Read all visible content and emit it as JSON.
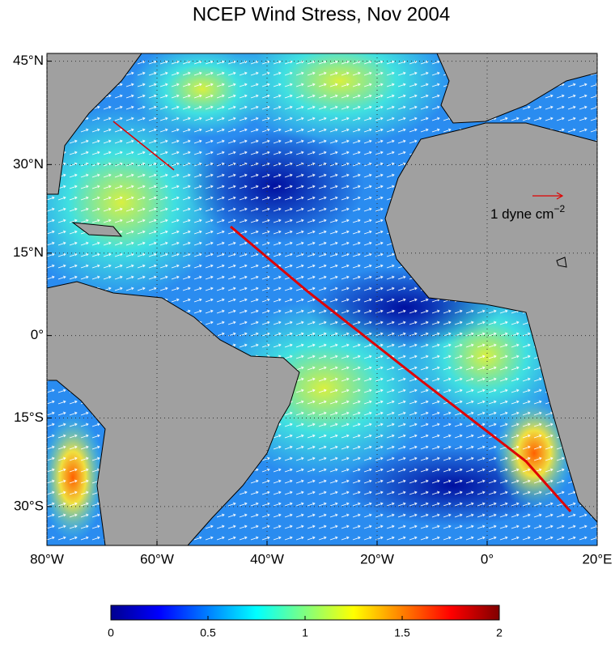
{
  "map": {
    "title": "NCEP Wind Stress, Nov 2004",
    "lonlim": [
      -80,
      20
    ],
    "latlim": [
      -36,
      46
    ],
    "lonticks": [
      {
        "value": -80,
        "label": "80°W"
      },
      {
        "value": -60,
        "label": "60°W"
      },
      {
        "value": -40,
        "label": "40°W"
      },
      {
        "value": -20,
        "label": "20°W"
      },
      {
        "value": 0,
        "label": "0°"
      },
      {
        "value": 20,
        "label": "20°E"
      }
    ],
    "latticks": [
      {
        "value": 45,
        "label": "45°N"
      },
      {
        "value": 30,
        "label": "30°N"
      },
      {
        "value": 15,
        "label": "15°N"
      },
      {
        "value": 0,
        "label": "0°"
      },
      {
        "value": -15,
        "label": "15°S"
      },
      {
        "value": -30,
        "label": "30°S"
      }
    ],
    "scale_label": "1 dyne cm",
    "scale_exponent": "−2",
    "colorbar": {
      "clim": [
        0,
        2
      ],
      "ticks": [
        0,
        0.5,
        1,
        1.5,
        2
      ]
    }
  }
}
